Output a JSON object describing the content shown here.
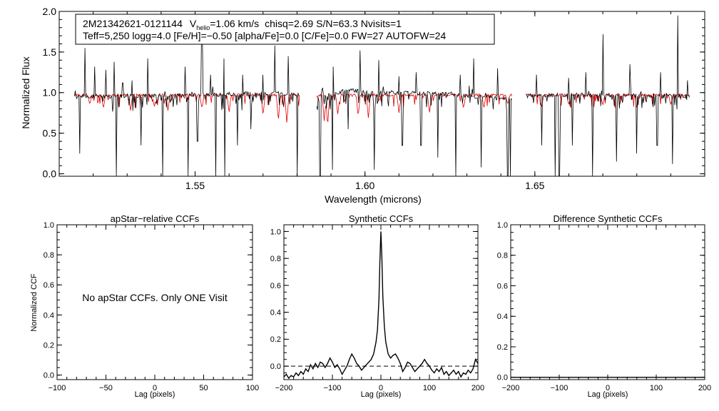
{
  "main_spectrum": {
    "star_id": "2M21342621-0121144",
    "v_label": "V",
    "v_subscript": "helio",
    "v_value": "=1.06 km/s",
    "stats": "chisq=2.69  S/N=63.3  Nvisits=1",
    "params_line": "Teff=5,250 logg=4.0 [Fe/H]=−0.50 [alpha/Fe]=0.0 [C/Fe]=0.0 FW=27 AUTOFW=24"
  },
  "apstar_note": "No apStar CCFs.  Only ONE Visit",
  "colors": {
    "observed": "#000000",
    "model": "#dd0000",
    "axis": "#000000"
  },
  "chart_data": [
    {
      "id": "spectrum",
      "type": "line",
      "title": "",
      "xlabel": "Wavelength (microns)",
      "ylabel": "Normalized Flux",
      "xlim": [
        1.51,
        1.7
      ],
      "ylim": [
        -0.03,
        2.0
      ],
      "xticks": [
        1.55,
        1.6,
        1.65
      ],
      "xtick_labels": [
        "1.55",
        "1.60",
        "1.65"
      ],
      "xminor_step": 0.01,
      "yticks": [
        0.0,
        0.5,
        1.0,
        1.5,
        2.0
      ],
      "ytick_labels": [
        "0.0",
        "0.5",
        "1.0",
        "1.5",
        "2.0"
      ],
      "yminor_step": 0.1,
      "chips": [
        [
          1.5145,
          1.5808
        ],
        [
          1.5858,
          1.6433
        ],
        [
          1.6474,
          1.6958
        ]
      ],
      "series": [
        {
          "name": "observed",
          "continuum": [
            [
              1.5145,
              0.95
            ],
            [
              1.53,
              0.96
            ],
            [
              1.55,
              0.97
            ],
            [
              1.57,
              0.99
            ],
            [
              1.5808,
              0.98
            ],
            [
              1.5858,
              0.93
            ],
            [
              1.595,
              1.03
            ],
            [
              1.605,
              1.0
            ],
            [
              1.62,
              0.99
            ],
            [
              1.6433,
              0.92
            ],
            [
              1.6474,
              0.96
            ],
            [
              1.66,
              0.97
            ],
            [
              1.68,
              0.97
            ],
            [
              1.6958,
              0.96
            ]
          ],
          "spikes_up": [
            [
              1.5175,
              1.55
            ],
            [
              1.5205,
              1.32
            ],
            [
              1.5238,
              1.28
            ],
            [
              1.5262,
              1.38
            ],
            [
              1.5287,
              1.12
            ],
            [
              1.5315,
              1.15
            ],
            [
              1.536,
              1.42
            ],
            [
              1.547,
              1.32
            ],
            [
              1.552,
              1.82
            ],
            [
              1.5545,
              1.22
            ],
            [
              1.5585,
              1.42
            ],
            [
              1.564,
              1.22
            ],
            [
              1.57,
              1.22
            ],
            [
              1.5735,
              1.58
            ],
            [
              1.5775,
              1.45
            ],
            [
              1.5907,
              1.32
            ],
            [
              1.5985,
              1.52
            ],
            [
              1.604,
              1.4
            ],
            [
              1.61,
              1.2
            ],
            [
              1.615,
              1.25
            ],
            [
              1.628,
              1.22
            ],
            [
              1.632,
              1.42
            ],
            [
              1.639,
              1.3
            ],
            [
              1.642,
              1.35
            ],
            [
              1.6505,
              1.22
            ],
            [
              1.657,
              1.75
            ],
            [
              1.66,
              1.18
            ],
            [
              1.665,
              1.25
            ],
            [
              1.67,
              1.72
            ],
            [
              1.678,
              1.35
            ],
            [
              1.687,
              1.25
            ],
            [
              1.692,
              1.95
            ],
            [
              1.695,
              1.15
            ]
          ],
          "spikes_down": [
            [
              1.516,
              0.25
            ],
            [
              1.5268,
              -0.03
            ],
            [
              1.534,
              0.35
            ],
            [
              1.5405,
              -0.03
            ],
            [
              1.548,
              -0.03
            ],
            [
              1.5507,
              0.4
            ],
            [
              1.556,
              -0.03
            ],
            [
              1.5588,
              -0.03
            ],
            [
              1.5625,
              0.35
            ],
            [
              1.5665,
              0.55
            ],
            [
              1.58,
              -0.03
            ],
            [
              1.5868,
              -0.03
            ],
            [
              1.5905,
              0.05
            ],
            [
              1.595,
              0.55
            ],
            [
              1.6028,
              0.05
            ],
            [
              1.611,
              0.35
            ],
            [
              1.6165,
              0.35
            ],
            [
              1.6215,
              0.2
            ],
            [
              1.6268,
              -0.03
            ],
            [
              1.6342,
              0.08
            ],
            [
              1.642,
              -0.03
            ],
            [
              1.6427,
              -0.03
            ],
            [
              1.652,
              0.35
            ],
            [
              1.656,
              -0.03
            ],
            [
              1.6572,
              -0.03
            ],
            [
              1.661,
              0.35
            ],
            [
              1.667,
              -0.03
            ],
            [
              1.674,
              0.15
            ],
            [
              1.68,
              0.25
            ],
            [
              1.686,
              0.35
            ],
            [
              1.6905,
              0.12
            ]
          ]
        },
        {
          "name": "model",
          "continuum": [
            [
              1.5145,
              0.97
            ],
            [
              1.6958,
              0.97
            ]
          ],
          "dips": [
            [
              1.519,
              0.85
            ],
            [
              1.523,
              0.8
            ],
            [
              1.531,
              0.78
            ],
            [
              1.538,
              0.82
            ],
            [
              1.542,
              0.78
            ],
            [
              1.552,
              0.8
            ],
            [
              1.56,
              0.75
            ],
            [
              1.57,
              0.72
            ],
            [
              1.5745,
              0.65
            ],
            [
              1.577,
              0.62
            ],
            [
              1.588,
              0.65
            ],
            [
              1.589,
              0.58
            ],
            [
              1.592,
              0.72
            ],
            [
              1.598,
              0.7
            ],
            [
              1.601,
              0.68
            ],
            [
              1.61,
              0.75
            ],
            [
              1.619,
              0.75
            ],
            [
              1.629,
              0.8
            ],
            [
              1.635,
              0.8
            ],
            [
              1.642,
              0.85
            ],
            [
              1.652,
              0.82
            ],
            [
              1.66,
              0.85
            ],
            [
              1.67,
              0.84
            ],
            [
              1.68,
              0.86
            ],
            [
              1.69,
              0.84
            ]
          ]
        }
      ]
    },
    {
      "id": "apstar_ccf",
      "type": "line",
      "title": "apStar−relative CCFs",
      "xlabel": "Lag (pixels)",
      "ylabel": "Normalized CCF",
      "xlim": [
        -100,
        100
      ],
      "ylim": [
        -0.03,
        1.0
      ],
      "xticks": [
        -100,
        -50,
        0,
        50,
        100
      ],
      "xtick_labels": [
        "−100",
        "−50",
        "0",
        "50",
        "100"
      ],
      "xminor_step": 10,
      "yticks": [
        0.0,
        0.2,
        0.4,
        0.6,
        0.8,
        1.0
      ],
      "ytick_labels": [
        "0.0",
        "0.2",
        "0.4",
        "0.6",
        "0.8",
        "1.0"
      ],
      "yminor_step": 0.05,
      "series": []
    },
    {
      "id": "synthetic_ccf",
      "type": "line",
      "title": "Synthetic CCFs",
      "xlabel": "Lag (pixels)",
      "ylabel": "",
      "xlim": [
        -200,
        200
      ],
      "ylim": [
        -0.1,
        1.05
      ],
      "xticks": [
        -200,
        -100,
        0,
        100,
        200
      ],
      "xtick_labels": [
        "−200",
        "−100",
        "0",
        "100",
        "200"
      ],
      "xminor_step": 20,
      "yticks": [
        0.0,
        0.2,
        0.4,
        0.6,
        0.8,
        1.0
      ],
      "ytick_labels": [
        "0.0",
        "0.2",
        "0.4",
        "0.6",
        "0.8",
        "1.0"
      ],
      "yminor_step": 0.05,
      "reference_line": 0.0,
      "series": [
        {
          "name": "ccf",
          "points": [
            [
              -200,
              -0.08
            ],
            [
              -195,
              -0.06
            ],
            [
              -190,
              -0.09
            ],
            [
              -185,
              -0.07
            ],
            [
              -180,
              -0.08
            ],
            [
              -175,
              -0.05
            ],
            [
              -170,
              -0.07
            ],
            [
              -165,
              -0.04
            ],
            [
              -160,
              -0.06
            ],
            [
              -155,
              -0.02
            ],
            [
              -150,
              -0.04
            ],
            [
              -145,
              0.01
            ],
            [
              -140,
              -0.02
            ],
            [
              -135,
              0.02
            ],
            [
              -130,
              -0.01
            ],
            [
              -125,
              0.03
            ],
            [
              -120,
              0.02
            ],
            [
              -115,
              -0.01
            ],
            [
              -110,
              0.02
            ],
            [
              -105,
              0.06
            ],
            [
              -100,
              0.03
            ],
            [
              -95,
              -0.01
            ],
            [
              -90,
              0.01
            ],
            [
              -85,
              -0.02
            ],
            [
              -80,
              -0.06
            ],
            [
              -75,
              -0.03
            ],
            [
              -70,
              0.0
            ],
            [
              -65,
              0.05
            ],
            [
              -60,
              0.09
            ],
            [
              -55,
              0.06
            ],
            [
              -50,
              0.02
            ],
            [
              -45,
              0.0
            ],
            [
              -40,
              -0.03
            ],
            [
              -35,
              -0.01
            ],
            [
              -30,
              0.01
            ],
            [
              -25,
              0.03
            ],
            [
              -20,
              0.05
            ],
            [
              -15,
              0.09
            ],
            [
              -10,
              0.18
            ],
            [
              -7,
              0.27
            ],
            [
              -4,
              0.5
            ],
            [
              -2,
              0.78
            ],
            [
              0,
              1.0
            ],
            [
              2,
              0.8
            ],
            [
              4,
              0.52
            ],
            [
              7,
              0.3
            ],
            [
              10,
              0.18
            ],
            [
              15,
              0.09
            ],
            [
              20,
              0.06
            ],
            [
              25,
              0.08
            ],
            [
              30,
              0.09
            ],
            [
              35,
              0.06
            ],
            [
              40,
              0.02
            ],
            [
              45,
              -0.04
            ],
            [
              50,
              -0.01
            ],
            [
              55,
              0.03
            ],
            [
              60,
              0.02
            ],
            [
              65,
              -0.01
            ],
            [
              70,
              -0.04
            ],
            [
              75,
              -0.02
            ],
            [
              80,
              0.0
            ],
            [
              85,
              0.02
            ],
            [
              90,
              0.05
            ],
            [
              95,
              0.02
            ],
            [
              100,
              0.0
            ],
            [
              105,
              -0.03
            ],
            [
              110,
              -0.05
            ],
            [
              115,
              -0.02
            ],
            [
              120,
              -0.04
            ],
            [
              125,
              -0.01
            ],
            [
              130,
              -0.06
            ],
            [
              135,
              -0.04
            ],
            [
              140,
              -0.07
            ],
            [
              145,
              -0.05
            ],
            [
              150,
              -0.03
            ],
            [
              155,
              -0.06
            ],
            [
              160,
              -0.04
            ],
            [
              165,
              -0.08
            ],
            [
              170,
              -0.05
            ],
            [
              175,
              -0.06
            ],
            [
              180,
              -0.03
            ],
            [
              185,
              -0.05
            ],
            [
              190,
              -0.02
            ],
            [
              195,
              0.05
            ],
            [
              200,
              0.02
            ]
          ]
        }
      ]
    },
    {
      "id": "difference_ccf",
      "type": "line",
      "title": "Difference Synthetic CCFs",
      "xlabel": "Lag (pixels)",
      "ylabel": "",
      "xlim": [
        -200,
        200
      ],
      "ylim": [
        -0.015,
        1.0
      ],
      "xticks": [
        -200,
        -100,
        0,
        100,
        200
      ],
      "xtick_labels": [
        "−200",
        "−100",
        "0",
        "100",
        "200"
      ],
      "xminor_step": 20,
      "yticks": [
        0.0,
        0.2,
        0.4,
        0.6,
        0.8,
        1.0
      ],
      "ytick_labels": [
        "0.0",
        "0.2",
        "0.4",
        "0.6",
        "0.8",
        "1.0"
      ],
      "yminor_step": 0.05,
      "series": [
        {
          "name": "difference",
          "points": [
            [
              -200,
              0.0
            ],
            [
              -100,
              0.0
            ],
            [
              0,
              0.0
            ],
            [
              100,
              0.0
            ],
            [
              200,
              0.0
            ]
          ]
        }
      ]
    }
  ]
}
